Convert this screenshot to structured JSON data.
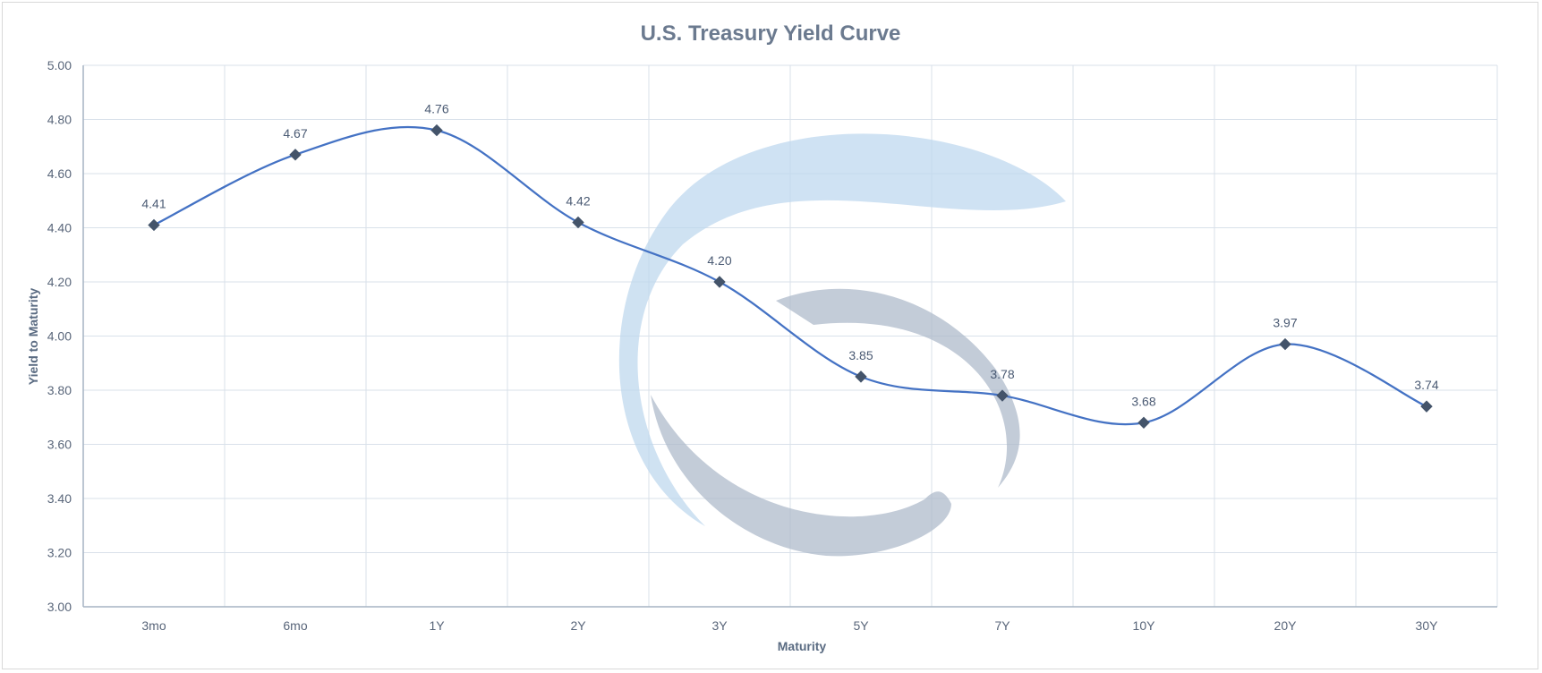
{
  "chart_data": {
    "type": "line",
    "title": "U.S. Treasury Yield Curve",
    "xlabel": "Maturity",
    "ylabel": "Yield to Maturity",
    "categories": [
      "3mo",
      "6mo",
      "1Y",
      "2Y",
      "3Y",
      "5Y",
      "7Y",
      "10Y",
      "20Y",
      "30Y"
    ],
    "series": [
      {
        "values": [
          4.41,
          4.67,
          4.76,
          4.42,
          4.2,
          3.85,
          3.78,
          3.68,
          3.97,
          3.74
        ]
      }
    ],
    "data_labels": [
      "4.41",
      "4.67",
      "4.76",
      "4.42",
      "4.20",
      "3.85",
      "3.78",
      "3.68",
      "3.97",
      "3.74"
    ],
    "y_ticks": [
      "3.00",
      "3.20",
      "3.40",
      "3.60",
      "3.80",
      "4.00",
      "4.20",
      "4.40",
      "4.60",
      "4.80",
      "5.00"
    ],
    "ylim": [
      3.0,
      5.0
    ],
    "grid": true,
    "smooth_line": true,
    "marker": "diamond",
    "colors": {
      "line": "#4472c4",
      "marker": "#44546a",
      "grid": "#d9e1ea",
      "axis": "#a6b4c4",
      "watermark_blue": "#bdd7ee",
      "watermark_gray": "#adb9ca"
    }
  }
}
